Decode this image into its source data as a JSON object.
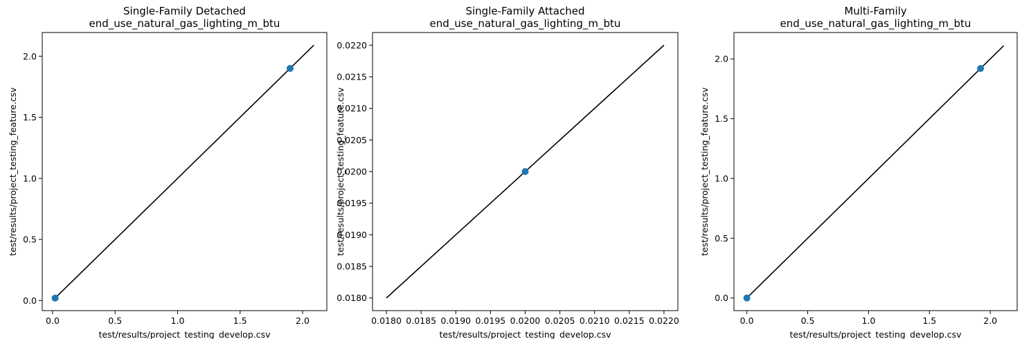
{
  "chart_data": [
    {
      "type": "scatter",
      "title": "Single-Family Detached\nend_use_natural_gas_lighting_m_btu",
      "xlabel": "test/results/project_testing_develop.csv",
      "ylabel": "test/results/project_testing_feature.csv",
      "xlim": [
        -0.083,
        2.194
      ],
      "ylim": [
        -0.083,
        2.194
      ],
      "xticks": [
        0.0,
        0.5,
        1.0,
        1.5,
        2.0
      ],
      "xtick_labels": [
        "0.0",
        "0.5",
        "1.0",
        "1.5",
        "2.0"
      ],
      "yticks": [
        0.0,
        0.5,
        1.0,
        1.5,
        2.0
      ],
      "ytick_labels": [
        "0.0",
        "0.5",
        "1.0",
        "1.5",
        "2.0"
      ],
      "points": [
        {
          "x": 0.02,
          "y": 0.02
        },
        {
          "x": 1.9,
          "y": 1.9
        }
      ],
      "reference_line": {
        "x": [
          0.02,
          2.09
        ],
        "y": [
          0.02,
          2.09
        ]
      },
      "grid": false
    },
    {
      "type": "scatter",
      "title": "Single-Family Attached\nend_use_natural_gas_lighting_m_btu",
      "xlabel": "test/results/project_testing_develop.csv",
      "ylabel": "test/results/project_testing_feature.csv",
      "xlim": [
        0.0178,
        0.0222
      ],
      "ylim": [
        0.0178,
        0.0222
      ],
      "xticks": [
        0.018,
        0.0185,
        0.019,
        0.0195,
        0.02,
        0.0205,
        0.021,
        0.0215,
        0.022
      ],
      "xtick_labels": [
        "0.0180",
        "0.0185",
        "0.0190",
        "0.0195",
        "0.0200",
        "0.0205",
        "0.0210",
        "0.0215",
        "0.0220"
      ],
      "yticks": [
        0.018,
        0.0185,
        0.019,
        0.0195,
        0.02,
        0.0205,
        0.021,
        0.0215,
        0.022
      ],
      "ytick_labels": [
        "0.0180",
        "0.0185",
        "0.0190",
        "0.0195",
        "0.0200",
        "0.0205",
        "0.0210",
        "0.0215",
        "0.0220"
      ],
      "points": [
        {
          "x": 0.02,
          "y": 0.02
        }
      ],
      "reference_line": {
        "x": [
          0.018,
          0.022
        ],
        "y": [
          0.018,
          0.022
        ]
      },
      "grid": false
    },
    {
      "type": "scatter",
      "title": "Multi-Family\nend_use_natural_gas_lighting_m_btu",
      "xlabel": "test/results/project_testing_develop.csv",
      "ylabel": "test/results/project_testing_feature.csv",
      "xlim": [
        -0.106,
        2.221
      ],
      "ylim": [
        -0.106,
        2.221
      ],
      "xticks": [
        0.0,
        0.5,
        1.0,
        1.5,
        2.0
      ],
      "xtick_labels": [
        "0.0",
        "0.5",
        "1.0",
        "1.5",
        "2.0"
      ],
      "yticks": [
        0.0,
        0.5,
        1.0,
        1.5,
        2.0
      ],
      "ytick_labels": [
        "0.0",
        "0.5",
        "1.0",
        "1.5",
        "2.0"
      ],
      "points": [
        {
          "x": 0.0,
          "y": 0.0
        },
        {
          "x": 1.92,
          "y": 1.92
        }
      ],
      "reference_line": {
        "x": [
          0.0,
          2.11
        ],
        "y": [
          0.0,
          2.11
        ]
      },
      "grid": false
    }
  ],
  "colors": {
    "point": "#1f77b4",
    "reference_line": "#000000",
    "axes": "#000000"
  }
}
